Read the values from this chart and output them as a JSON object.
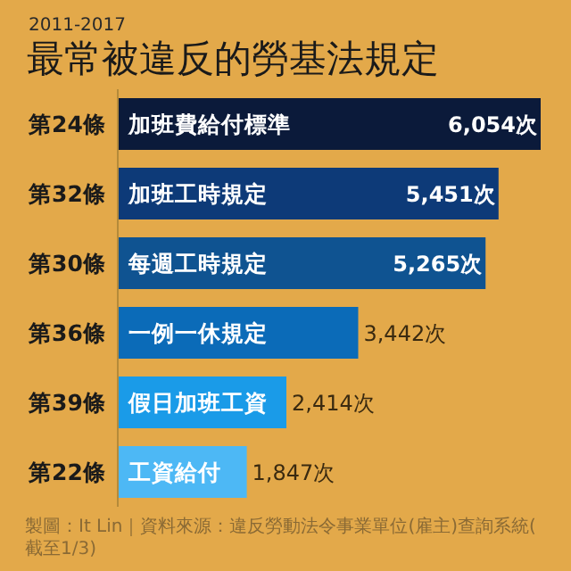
{
  "chart_data": {
    "type": "bar",
    "orientation": "horizontal",
    "title": "最常被違反的勞基法規定",
    "subtitle": "2011-2017",
    "categories": [
      "第24條",
      "第32條",
      "第30條",
      "第36條",
      "第39條",
      "第22條"
    ],
    "values": [
      6054,
      5451,
      5265,
      3442,
      2414,
      1847
    ],
    "value_labels": [
      "6,054次",
      "5,451次",
      "5,265次",
      "3,442次",
      "2,414次",
      "1,847次"
    ],
    "colors": [
      "#0b1a3a",
      "#0d3a78",
      "#0f5391",
      "#0b6bb8",
      "#1a9be8",
      "#4db8f5"
    ],
    "annotations": [
      {
        "text": "加班費給付標準",
        "y": "第24條"
      },
      {
        "text": "加班工時規定",
        "y": "第32條"
      },
      {
        "text": "每週工時規定",
        "y": "第30條"
      },
      {
        "text": "一例一休規定",
        "y": "第36條"
      },
      {
        "text": "假日加班工資",
        "y": "第39條"
      },
      {
        "text": "工資給付",
        "y": "第22條"
      },
      "製圖：It Lin｜資料來源：違反勞動法令事業單位(雇主)查詢系統(截至1/3)"
    ]
  }
}
